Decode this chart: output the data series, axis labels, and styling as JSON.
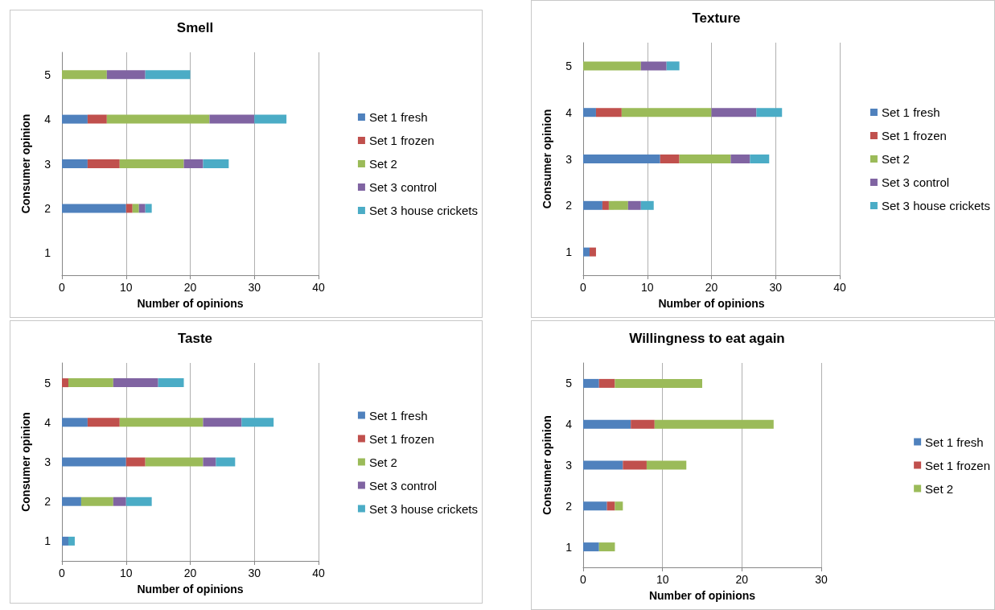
{
  "chart_data": [
    {
      "type": "bar",
      "title": "Smell",
      "xlabel": "Number of opinions",
      "ylabel": "Consumer opinion",
      "orientation": "horizontal",
      "stacked": true,
      "categories": [
        "5",
        "4",
        "3",
        "2",
        "1"
      ],
      "xlim": [
        0,
        40
      ],
      "xticks": [
        0,
        10,
        20,
        30,
        40
      ],
      "grid": "x",
      "legend": "right",
      "series": [
        {
          "name": "Set 1 fresh",
          "color": "#4f81bd",
          "values": [
            0,
            4,
            4,
            10,
            0
          ]
        },
        {
          "name": "Set 1 frozen",
          "color": "#c0504d",
          "values": [
            0,
            3,
            5,
            1,
            0
          ]
        },
        {
          "name": "Set 2",
          "color": "#9bbb59",
          "values": [
            7,
            16,
            10,
            1,
            0
          ]
        },
        {
          "name": "Set 3 control",
          "color": "#8064a2",
          "values": [
            6,
            7,
            3,
            1,
            0
          ]
        },
        {
          "name": "Set 3 house crickets",
          "color": "#4bacc6",
          "values": [
            7,
            5,
            4,
            1,
            0
          ]
        }
      ]
    },
    {
      "type": "bar",
      "title": "Texture",
      "xlabel": "Number of opinions",
      "ylabel": "Consumer opinion",
      "orientation": "horizontal",
      "stacked": true,
      "categories": [
        "5",
        "4",
        "3",
        "2",
        "1"
      ],
      "xlim": [
        0,
        40
      ],
      "xticks": [
        0,
        10,
        20,
        30,
        40
      ],
      "grid": "x",
      "legend": "right",
      "series": [
        {
          "name": "Set 1 fresh",
          "color": "#4f81bd",
          "values": [
            0,
            2,
            12,
            3,
            1
          ]
        },
        {
          "name": "Set 1 frozen",
          "color": "#c0504d",
          "values": [
            0,
            4,
            3,
            1,
            1
          ]
        },
        {
          "name": "Set 2",
          "color": "#9bbb59",
          "values": [
            9,
            14,
            8,
            3,
            0
          ]
        },
        {
          "name": "Set 3 control",
          "color": "#8064a2",
          "values": [
            4,
            7,
            3,
            2,
            0
          ]
        },
        {
          "name": "Set 3 house crickets",
          "color": "#4bacc6",
          "values": [
            2,
            4,
            3,
            2,
            0
          ]
        }
      ]
    },
    {
      "type": "bar",
      "title": "Taste",
      "xlabel": "Number of opinions",
      "ylabel": "Consumer opinion",
      "orientation": "horizontal",
      "stacked": true,
      "categories": [
        "5",
        "4",
        "3",
        "2",
        "1"
      ],
      "xlim": [
        0,
        40
      ],
      "xticks": [
        0,
        10,
        20,
        30,
        40
      ],
      "grid": "x",
      "legend": "right",
      "series": [
        {
          "name": "Set 1 fresh",
          "color": "#4f81bd",
          "values": [
            0,
            4,
            10,
            3,
            1
          ]
        },
        {
          "name": "Set 1 frozen",
          "color": "#c0504d",
          "values": [
            1,
            5,
            3,
            0,
            0
          ]
        },
        {
          "name": "Set 2",
          "color": "#9bbb59",
          "values": [
            7,
            13,
            9,
            5,
            0
          ]
        },
        {
          "name": "Set 3 control",
          "color": "#8064a2",
          "values": [
            7,
            6,
            2,
            2,
            0
          ]
        },
        {
          "name": "Set 3 house crickets",
          "color": "#4bacc6",
          "values": [
            4,
            5,
            3,
            4,
            1
          ]
        }
      ]
    },
    {
      "type": "bar",
      "title": "Willingness to eat again",
      "xlabel": "Number of opinions",
      "ylabel": "Consumer opinion",
      "orientation": "horizontal",
      "stacked": true,
      "categories": [
        "5",
        "4",
        "3",
        "2",
        "1"
      ],
      "xlim": [
        0,
        30
      ],
      "xticks": [
        0,
        10,
        20,
        30
      ],
      "grid": "x",
      "legend": "right",
      "series": [
        {
          "name": "Set 1 fresh",
          "color": "#4f81bd",
          "values": [
            2,
            6,
            5,
            3,
            2
          ]
        },
        {
          "name": "Set 1 frozen",
          "color": "#c0504d",
          "values": [
            2,
            3,
            3,
            1,
            0
          ]
        },
        {
          "name": "Set 2",
          "color": "#9bbb59",
          "values": [
            11,
            15,
            5,
            1,
            2
          ]
        }
      ]
    }
  ]
}
